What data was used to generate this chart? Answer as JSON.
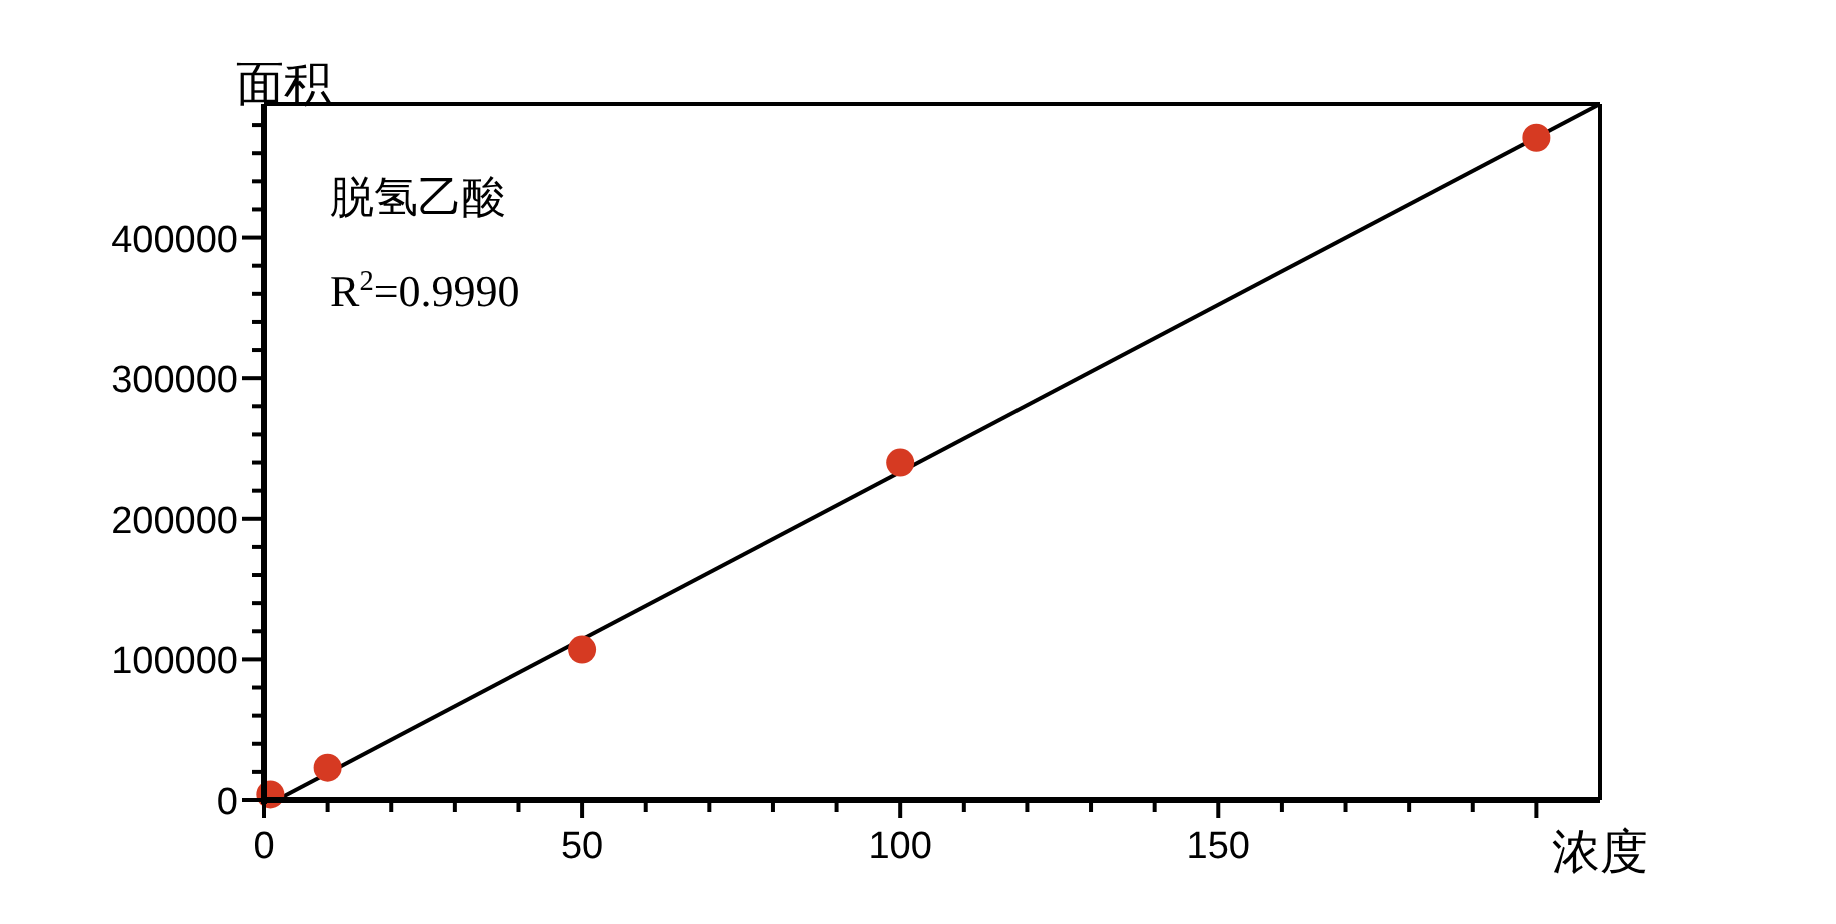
{
  "chart_data": {
    "type": "scatter",
    "xlabel": "浓度",
    "ylabel": "面积",
    "annotations": [
      "脱氢乙酸",
      "R$^{2}$=0.9990"
    ],
    "xlim": [
      0,
      210
    ],
    "ylim": [
      0,
      495000
    ],
    "xticks": [
      0,
      {
        "value": 10,
        "label": null
      },
      {
        "value": 20,
        "label": null
      },
      {
        "value": 30,
        "label": null
      },
      {
        "value": 40,
        "label": null
      },
      50,
      {
        "value": 60,
        "label": null
      },
      {
        "value": 70,
        "label": null
      },
      {
        "value": 80,
        "label": null
      },
      {
        "value": 90,
        "label": null
      },
      100,
      {
        "value": 110,
        "label": null
      },
      {
        "value": 120,
        "label": null
      },
      {
        "value": 130,
        "label": null
      },
      {
        "value": 140,
        "label": null
      },
      150,
      {
        "value": 160,
        "label": null
      },
      {
        "value": 170,
        "label": null
      },
      {
        "value": 180,
        "label": null
      },
      {
        "value": 190,
        "label": null
      },
      {
        "value": 200,
        "label": null
      }
    ],
    "yticks": [
      0,
      {
        "value": 20000,
        "label": null
      },
      {
        "value": 40000,
        "label": null
      },
      {
        "value": 60000,
        "label": null
      },
      {
        "value": 80000,
        "label": null
      },
      100000,
      {
        "value": 120000,
        "label": null
      },
      {
        "value": 140000,
        "label": null
      },
      {
        "value": 160000,
        "label": null
      },
      {
        "value": 180000,
        "label": null
      },
      200000,
      {
        "value": 220000,
        "label": null
      },
      {
        "value": 240000,
        "label": null
      },
      {
        "value": 260000,
        "label": null
      },
      {
        "value": 280000,
        "label": null
      },
      300000,
      {
        "value": 320000,
        "label": null
      },
      {
        "value": 340000,
        "label": null
      },
      {
        "value": 360000,
        "label": null
      },
      {
        "value": 380000,
        "label": null
      },
      400000,
      {
        "value": 420000,
        "label": null
      },
      {
        "value": 440000,
        "label": null
      },
      {
        "value": 460000,
        "label": null
      },
      {
        "value": 480000,
        "label": null
      }
    ],
    "grid": false,
    "series": [
      {
        "type": "line",
        "marker": "none",
        "color": "#000000",
        "x": [
          2,
          210
        ],
        "values": [
          0,
          495000
        ]
      },
      {
        "marker": "circle",
        "color": "#d63a22",
        "x": [
          1,
          10,
          50,
          100,
          200
        ],
        "values": [
          4000,
          23000,
          107000,
          240000,
          471000
        ]
      }
    ]
  }
}
